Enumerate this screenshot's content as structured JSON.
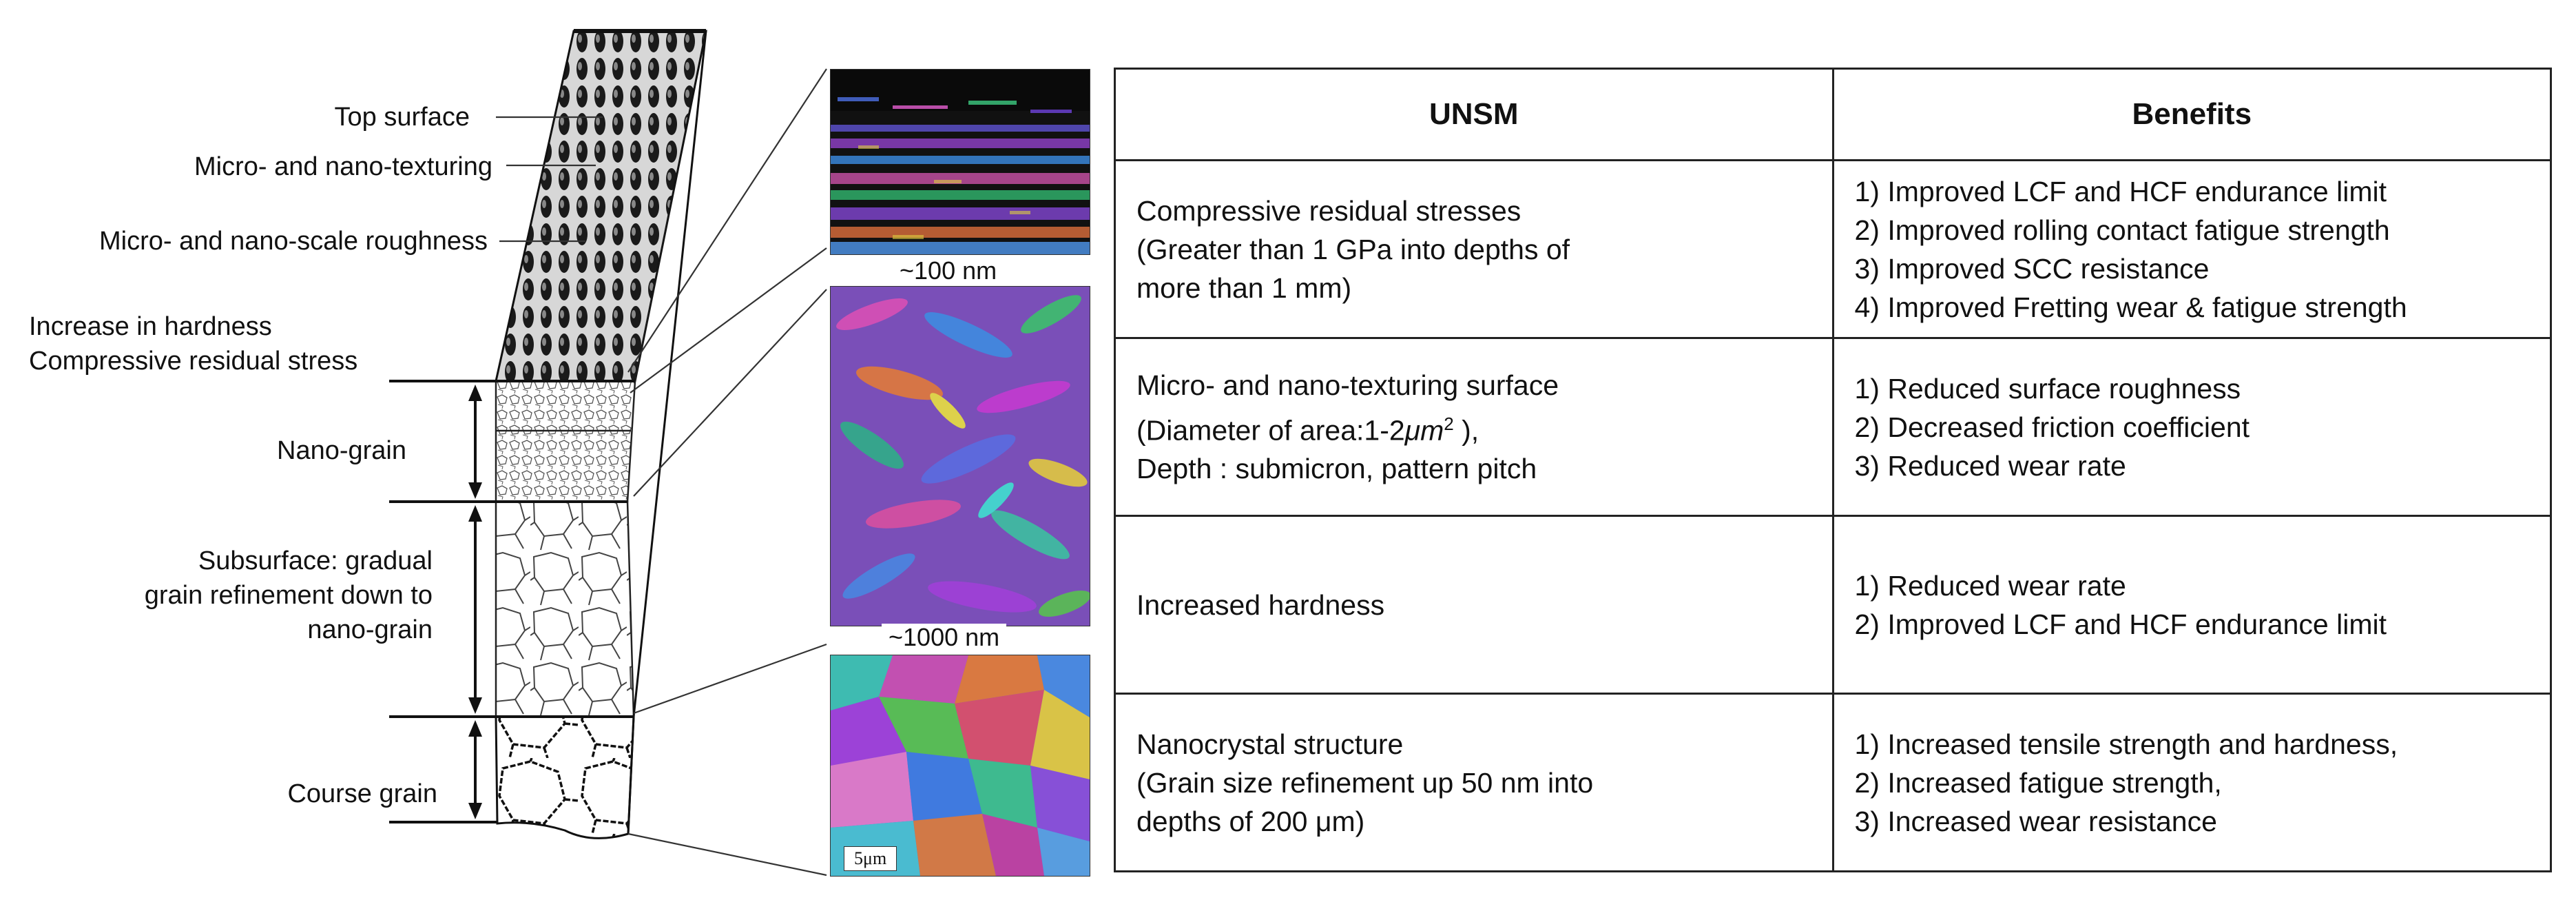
{
  "labels": {
    "top_surface": "Top surface",
    "texturing": "Micro- and nano-texturing",
    "roughness": "Micro- and nano-scale roughness",
    "hardness_line1": "Increase in hardness",
    "hardness_line2": "Compressive residual stress",
    "nano_grain": "Nano-grain",
    "subsurface_line1": "Subsurface: gradual",
    "subsurface_line2": "grain refinement down to",
    "subsurface_line3": "nano-grain",
    "course_grain": "Course grain"
  },
  "micrographs": {
    "caption_1": "~100 nm",
    "caption_2": "~1000 nm",
    "scale_bar": "5μm"
  },
  "table": {
    "headers": [
      "UNSM",
      "Benefits"
    ],
    "rows": [
      {
        "unsm": [
          "Compressive residual stresses",
          "(Greater than 1 GPa into depths of",
          "more than 1 mm)"
        ],
        "benefits": [
          "1) Improved LCF and HCF endurance limit",
          "2) Improved rolling contact fatigue strength",
          "3) Improved SCC resistance",
          "4) Improved Fretting wear & fatigue strength"
        ]
      },
      {
        "unsm": [
          "Micro-  and nano-texturing surface",
          "(Diameter of area:1-2",
          "μm",
          "2",
          " ),",
          "Depth : submicron, pattern pitch"
        ],
        "benefits": [
          "1) Reduced surface roughness",
          "2) Decreased friction coefficient",
          "3) Reduced wear rate"
        ]
      },
      {
        "unsm": [
          "Increased hardness"
        ],
        "benefits": [
          "1) Reduced wear rate",
          "2) Improved LCF and HCF  endurance limit"
        ]
      },
      {
        "unsm": [
          "Nanocrystal structure",
          "(Grain size refinement up 50 nm into",
          "depths of 200 μm)"
        ],
        "benefits": [
          "1) Increased tensile strength and hardness,",
          "2) Increased fatigue strength,",
          "3) Increased wear resistance"
        ]
      }
    ]
  }
}
